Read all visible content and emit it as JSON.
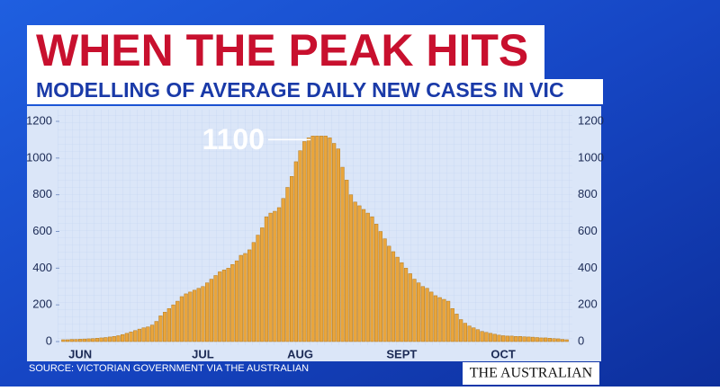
{
  "chart_data": {
    "type": "bar",
    "title": "WHEN THE PEAK HITS",
    "subtitle": "MODELLING OF AVERAGE DAILY NEW CASES IN VIC",
    "annotation": 1100,
    "source": "SOURCE: VICTORIAN GOVERNMENT VIA THE AUSTRALIAN",
    "branding": "THE AUSTRALIAN",
    "color": "#e9a53c",
    "ylim": [
      0,
      1200
    ],
    "yticks": [
      0,
      200,
      400,
      600,
      800,
      1000,
      1200
    ],
    "categories": [
      null,
      null,
      null,
      null,
      "JUN",
      null,
      null,
      null,
      null,
      null,
      null,
      null,
      null,
      null,
      null,
      null,
      null,
      null,
      null,
      null,
      null,
      null,
      null,
      null,
      null,
      null,
      null,
      null,
      null,
      null,
      null,
      null,
      null,
      "JUL",
      null,
      null,
      null,
      null,
      null,
      null,
      null,
      null,
      null,
      null,
      null,
      null,
      null,
      null,
      null,
      null,
      null,
      null,
      null,
      null,
      null,
      null,
      "AUG",
      null,
      null,
      null,
      null,
      null,
      null,
      null,
      null,
      null,
      null,
      null,
      null,
      null,
      null,
      null,
      null,
      null,
      null,
      null,
      null,
      null,
      null,
      null,
      "SEPT",
      null,
      null,
      null,
      null,
      null,
      null,
      null,
      null,
      null,
      null,
      null,
      null,
      null,
      null,
      null,
      null,
      null,
      null,
      null,
      null,
      null,
      null,
      null,
      "OCT",
      null,
      null,
      null,
      null,
      null,
      null,
      null,
      null,
      null,
      null,
      null,
      null,
      null,
      null,
      null
    ],
    "values": [
      10,
      10,
      12,
      12,
      13,
      14,
      15,
      16,
      18,
      20,
      22,
      25,
      28,
      32,
      38,
      45,
      52,
      60,
      68,
      75,
      80,
      90,
      110,
      140,
      160,
      180,
      200,
      220,
      245,
      260,
      270,
      280,
      290,
      300,
      320,
      340,
      360,
      380,
      390,
      400,
      420,
      440,
      470,
      480,
      500,
      540,
      580,
      620,
      680,
      700,
      710,
      730,
      780,
      840,
      900,
      980,
      1040,
      1090,
      1110,
      1120,
      1120,
      1120,
      1120,
      1110,
      1080,
      1050,
      950,
      880,
      800,
      760,
      740,
      720,
      700,
      680,
      640,
      600,
      560,
      520,
      490,
      460,
      430,
      400,
      370,
      340,
      320,
      300,
      290,
      270,
      250,
      240,
      230,
      220,
      180,
      150,
      120,
      100,
      85,
      75,
      65,
      55,
      50,
      45,
      40,
      35,
      32,
      30,
      30,
      28,
      28,
      26,
      25,
      24,
      22,
      20,
      20,
      18,
      16,
      15,
      12,
      10
    ]
  }
}
